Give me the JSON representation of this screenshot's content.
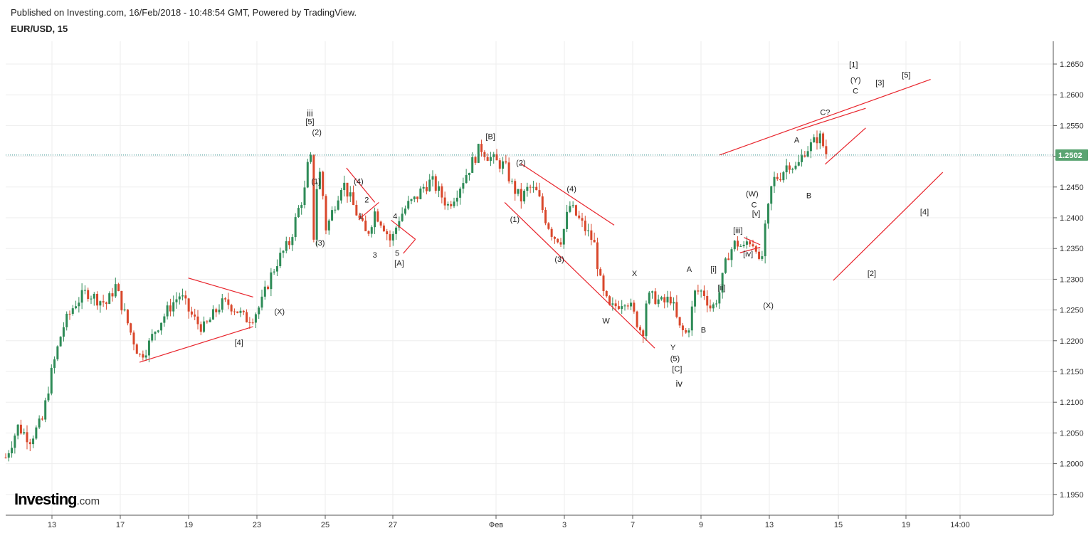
{
  "header": {
    "published": "Published on Investing.com, 16/Feb/2018 - 10:48:54 GMT, Powered by TradingView.",
    "symbol": "EUR/USD, 15"
  },
  "logo": {
    "brand": "Investing",
    "domain": ".com"
  },
  "colors": {
    "up_candle": "#2e8b57",
    "down_candle": "#d9472b",
    "trendline": "#e8232b",
    "price_line": "#2f8f8a",
    "price_badge": "#5aa472",
    "grid": "#eeeeee",
    "label_orange": "#f29a1e"
  },
  "chart_data": {
    "type": "candlestick",
    "title": "EUR/USD, 15",
    "y_range": [
      1.1925,
      1.2675
    ],
    "y_ticks": [
      "1.2650",
      "1.2600",
      "1.2550",
      "1.2500",
      "1.2450",
      "1.2400",
      "1.2350",
      "1.2300",
      "1.2250",
      "1.2200",
      "1.2150",
      "1.2100",
      "1.2050",
      "1.2000",
      "1.1950"
    ],
    "x_ticks": [
      "13",
      "17",
      "19",
      "23",
      "25",
      "27",
      "Фев",
      "3",
      "7",
      "9",
      "13",
      "15",
      "19",
      "14:00"
    ],
    "current_price": "1.2502",
    "price_path": [
      [
        0,
        1.201
      ],
      [
        3,
        1.206
      ],
      [
        6,
        1.204
      ],
      [
        9,
        1.207
      ],
      [
        11,
        1.214
      ],
      [
        14,
        1.222
      ],
      [
        17,
        1.226
      ],
      [
        20,
        1.228
      ],
      [
        22,
        1.227
      ],
      [
        25,
        1.226
      ],
      [
        27,
        1.229
      ],
      [
        29,
        1.225
      ],
      [
        31,
        1.221
      ],
      [
        33,
        1.2175
      ],
      [
        35,
        1.219
      ],
      [
        37,
        1.222
      ],
      [
        39,
        1.224
      ],
      [
        41,
        1.226
      ],
      [
        43,
        1.2275
      ],
      [
        45,
        1.225
      ],
      [
        47,
        1.223
      ],
      [
        49,
        1.222
      ],
      [
        51,
        1.224
      ],
      [
        53,
        1.226
      ],
      [
        55,
        1.226
      ],
      [
        57,
        1.225
      ],
      [
        59,
        1.2235
      ],
      [
        61,
        1.224
      ],
      [
        63,
        1.226
      ],
      [
        65,
        1.23
      ],
      [
        67,
        1.233
      ],
      [
        70,
        1.236
      ],
      [
        72,
        1.241
      ],
      [
        74,
        1.245
      ],
      [
        75,
        1.2525
      ],
      [
        76,
        1.236
      ],
      [
        77,
        1.249
      ],
      [
        78,
        1.245
      ],
      [
        79,
        1.238
      ],
      [
        81,
        1.242
      ],
      [
        83,
        1.246
      ],
      [
        85,
        1.243
      ],
      [
        87,
        1.24
      ],
      [
        89,
        1.237
      ],
      [
        91,
        1.241
      ],
      [
        93,
        1.239
      ],
      [
        95,
        1.236
      ],
      [
        97,
        1.24
      ],
      [
        99,
        1.242
      ],
      [
        101,
        1.243
      ],
      [
        103,
        1.245
      ],
      [
        105,
        1.246
      ],
      [
        107,
        1.244
      ],
      [
        109,
        1.242
      ],
      [
        111,
        1.244
      ],
      [
        113,
        1.2465
      ],
      [
        115,
        1.249
      ],
      [
        117,
        1.2515
      ],
      [
        119,
        1.25
      ],
      [
        121,
        1.249
      ],
      [
        123,
        1.2485
      ],
      [
        125,
        1.245
      ],
      [
        127,
        1.243
      ],
      [
        129,
        1.245
      ],
      [
        131,
        1.244
      ],
      [
        133,
        1.24
      ],
      [
        135,
        1.237
      ],
      [
        137,
        1.2365
      ],
      [
        139,
        1.242
      ],
      [
        141,
        1.24
      ],
      [
        143,
        1.238
      ],
      [
        145,
        1.236
      ],
      [
        147,
        1.228
      ],
      [
        149,
        1.225
      ],
      [
        151,
        1.226
      ],
      [
        153,
        1.227
      ],
      [
        155,
        1.224
      ],
      [
        157,
        1.221
      ],
      [
        158,
        1.227
      ],
      [
        160,
        1.227
      ],
      [
        162,
        1.226
      ],
      [
        164,
        1.227
      ],
      [
        166,
        1.222
      ],
      [
        168,
        1.221
      ],
      [
        170,
        1.228
      ],
      [
        172,
        1.228
      ],
      [
        174,
        1.225
      ],
      [
        176,
        1.228
      ],
      [
        178,
        1.234
      ],
      [
        180,
        1.236
      ],
      [
        182,
        1.235
      ],
      [
        183,
        1.2365
      ],
      [
        185,
        1.2355
      ],
      [
        186,
        1.231
      ],
      [
        187,
        1.237
      ],
      [
        189,
        1.246
      ],
      [
        191,
        1.247
      ],
      [
        193,
        1.249
      ],
      [
        195,
        1.248
      ],
      [
        197,
        1.251
      ],
      [
        199,
        1.252
      ],
      [
        200,
        1.253
      ],
      [
        201,
        1.253
      ],
      [
        202,
        1.2505
      ]
    ],
    "wave_labels": [
      {
        "text": "iii",
        "x": 75,
        "y": 1.2565
      },
      {
        "text": "[5]",
        "x": 75,
        "y": 1.2552
      },
      {
        "text": "(2)",
        "x": 76.7,
        "y": 1.2535
      },
      {
        "text": "(1)",
        "x": 76.5,
        "y": 1.2455
      },
      {
        "text": "(3)",
        "x": 77.5,
        "y": 1.2355
      },
      {
        "text": "(4)",
        "x": 87,
        "y": 1.2455
      },
      {
        "text": "2",
        "x": 89,
        "y": 1.2425
      },
      {
        "text": "1",
        "x": 87.5,
        "y": 1.2398
      },
      {
        "text": "4",
        "x": 96,
        "y": 1.2398
      },
      {
        "text": "3",
        "x": 91,
        "y": 1.2335
      },
      {
        "text": "5",
        "x": 96.5,
        "y": 1.2338
      },
      {
        "text": "[A]",
        "x": 97,
        "y": 1.2322
      },
      {
        "text": "[4]",
        "x": 57.5,
        "y": 1.2193
      },
      {
        "text": "(X)",
        "x": 67.5,
        "y": 1.2243
      },
      {
        "text": "[B]",
        "x": 119.5,
        "y": 1.2528
      },
      {
        "text": "(2)",
        "x": 127,
        "y": 1.2485
      },
      {
        "text": "(1)",
        "x": 125.5,
        "y": 1.2393
      },
      {
        "text": "(4)",
        "x": 139.5,
        "y": 1.2443
      },
      {
        "text": "(3)",
        "x": 136.5,
        "y": 1.2328
      },
      {
        "text": "W",
        "x": 148,
        "y": 1.2228
      },
      {
        "text": "X",
        "x": 155,
        "y": 1.2305
      },
      {
        "text": "Y",
        "x": 164.5,
        "y": 1.2185
      },
      {
        "text": "(5)",
        "x": 165,
        "y": 1.2167
      },
      {
        "text": "[C]",
        "x": 165.5,
        "y": 1.215
      },
      {
        "text": "iv",
        "x": 166,
        "y": 1.2125
      },
      {
        "text": "A",
        "x": 168.5,
        "y": 1.2312
      },
      {
        "text": "B",
        "x": 172,
        "y": 1.2213
      },
      {
        "text": "[i]",
        "x": 174.5,
        "y": 1.2312
      },
      {
        "text": "[ii]",
        "x": 176.5,
        "y": 1.2282
      },
      {
        "text": "[iii]",
        "x": 180.5,
        "y": 1.2375
      },
      {
        "text": "[iv]",
        "x": 183,
        "y": 1.2337
      },
      {
        "text": "(W)",
        "x": 184,
        "y": 1.2435
      },
      {
        "text": "C",
        "x": 184.5,
        "y": 1.2417
      },
      {
        "text": "[v]",
        "x": 185,
        "y": 1.2403
      },
      {
        "text": "(X)",
        "x": 188,
        "y": 1.2253
      },
      {
        "text": "A",
        "x": 195,
        "y": 1.2522
      },
      {
        "text": "B",
        "x": 198,
        "y": 1.2432
      },
      {
        "text": "C?",
        "x": 202,
        "y": 1.2567
      },
      {
        "text": "[1]",
        "x": 209,
        "y": 1.2645
      },
      {
        "text": "(Y)",
        "x": 209.5,
        "y": 1.262
      },
      {
        "text": "C",
        "x": 209.5,
        "y": 1.2602
      },
      {
        "text": "[3]",
        "x": 215.5,
        "y": 1.2615
      },
      {
        "text": "[5]",
        "x": 222,
        "y": 1.2628
      },
      {
        "text": "[4]",
        "x": 226.5,
        "y": 1.2405
      },
      {
        "text": "[2]",
        "x": 213.5,
        "y": 1.2305
      }
    ],
    "trendlines": [
      [
        [
          33,
          1.2165
        ],
        [
          61,
          1.2223
        ]
      ],
      [
        [
          45,
          1.2302
        ],
        [
          61,
          1.2271
        ]
      ],
      [
        [
          62,
          1.2217
        ],
        [
          62,
          1.2217
        ]
      ],
      [
        [
          84,
          1.2481
        ],
        [
          91,
          1.2425
        ]
      ],
      [
        [
          84,
          1.2481
        ],
        [
          84,
          1.2481
        ]
      ],
      [
        [
          87,
          1.2397
        ],
        [
          92,
          1.2425
        ]
      ],
      [
        [
          95,
          1.2396
        ],
        [
          101,
          1.2365
        ]
      ],
      [
        [
          98,
          1.2342
        ],
        [
          101,
          1.2365
        ]
      ],
      [
        [
          127,
          1.2488
        ],
        [
          150,
          1.2388
        ]
      ],
      [
        [
          123,
          1.2425
        ],
        [
          160,
          1.2188
        ]
      ],
      [
        [
          182,
          1.2368
        ],
        [
          186,
          1.2356
        ]
      ],
      [
        [
          181,
          1.2343
        ],
        [
          186,
          1.2352
        ]
      ],
      [
        [
          176,
          1.2502
        ],
        [
          228,
          1.2625
        ]
      ],
      [
        [
          195,
          1.2542
        ],
        [
          212,
          1.2578
        ]
      ],
      [
        [
          202,
          1.2487
        ],
        [
          212,
          1.2546
        ]
      ],
      [
        [
          204,
          1.2298
        ],
        [
          231,
          1.2474
        ]
      ]
    ]
  }
}
